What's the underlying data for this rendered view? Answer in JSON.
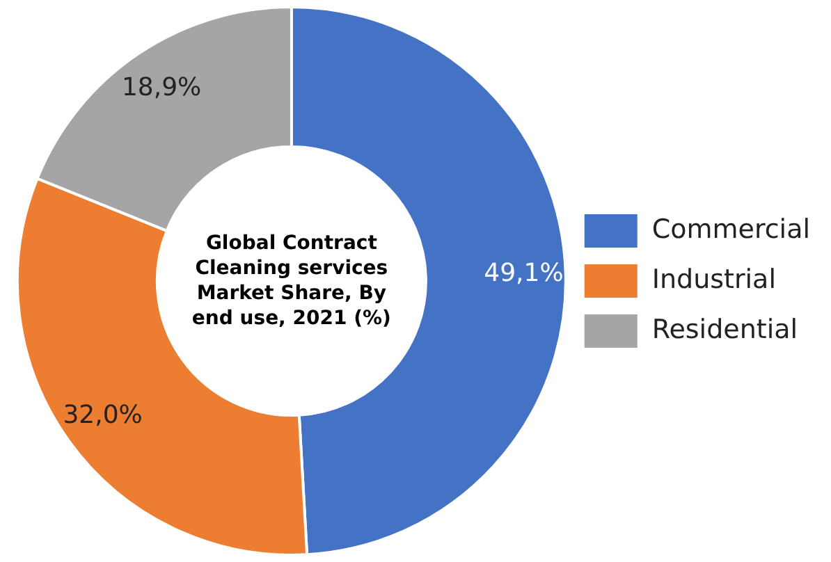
{
  "chart_data": {
    "type": "donut",
    "title": "Global Contract Cleaning services Market Share, By end use, 2021 (%)",
    "categories": [
      "Commercial",
      "Industrial",
      "Residential"
    ],
    "values": [
      49.1,
      32.0,
      18.9
    ],
    "colors": [
      "#4472c4",
      "#ed7d31",
      "#a5a5a5"
    ],
    "value_labels": [
      "49,1%",
      "32,0%",
      "18,9%"
    ],
    "legend": "right"
  }
}
